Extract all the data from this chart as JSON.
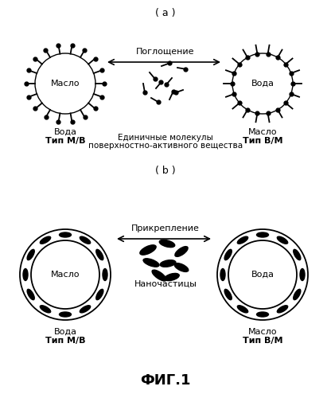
{
  "title_a": "( a )",
  "title_b": "( b )",
  "fig_title": "ФИГ.1",
  "arrow_label_a": "Поглощение",
  "arrow_label_b": "Прикрепление",
  "left_label_a": [
    "Масло",
    "Вода",
    "Тип М/В"
  ],
  "right_label_a": [
    "Вода",
    "Масло",
    "Тип В/М"
  ],
  "left_label_b": [
    "Масло",
    "Вода",
    "Тип М/В"
  ],
  "right_label_b": [
    "Вода",
    "Масло",
    "Тип В/М"
  ],
  "surfactant_label": [
    "Единичные молекулы",
    "поверхностно-активного вещества"
  ],
  "nanoparticle_label": "Наночастицы",
  "background_color": "#ffffff"
}
